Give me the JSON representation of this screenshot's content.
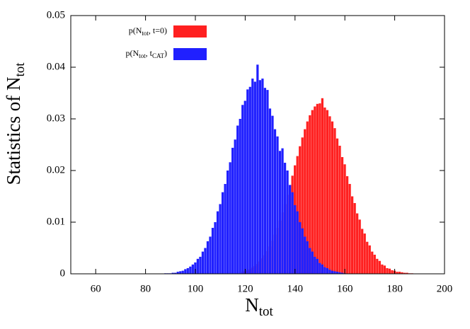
{
  "chart_data": {
    "type": "histogram",
    "x_label": {
      "text": "N",
      "subscript": "tot"
    },
    "y_label": {
      "text": "Statistics of N",
      "subscript": "tot"
    },
    "xlim": [
      50,
      200
    ],
    "ylim": [
      0,
      0.05
    ],
    "xticks": [
      60,
      80,
      100,
      120,
      140,
      160,
      180,
      200
    ],
    "yticks": [
      0,
      0.01,
      0.02,
      0.03,
      0.04,
      0.05
    ],
    "legend": "top-left",
    "x": [
      88,
      89,
      90,
      91,
      92,
      93,
      94,
      95,
      96,
      97,
      98,
      99,
      100,
      101,
      102,
      103,
      104,
      105,
      106,
      107,
      108,
      109,
      110,
      111,
      112,
      113,
      114,
      115,
      116,
      117,
      118,
      119,
      120,
      121,
      122,
      123,
      124,
      125,
      126,
      127,
      128,
      129,
      130,
      131,
      132,
      133,
      134,
      135,
      136,
      137,
      138,
      139,
      140,
      141,
      142,
      143,
      144,
      145,
      146,
      147,
      148,
      149,
      150,
      151,
      152,
      153,
      154,
      155,
      156,
      157,
      158,
      159,
      160,
      161,
      162,
      163,
      164,
      165,
      166,
      167,
      168,
      169,
      170,
      171,
      172,
      173,
      174,
      175,
      176,
      177,
      178,
      179,
      180,
      181,
      182,
      183,
      184,
      185,
      186,
      187,
      188,
      189,
      190,
      191,
      192,
      193,
      194,
      195,
      196,
      197,
      198
    ],
    "series": [
      {
        "name": [
          {
            "text": "p(N"
          },
          {
            "sub": "tot"
          },
          {
            "text": ", t=0)"
          }
        ],
        "color": "#ff2020",
        "values": [
          0,
          0,
          0,
          0,
          0,
          0,
          0,
          0,
          0,
          0,
          0,
          0,
          0,
          0,
          0,
          0,
          0,
          0,
          0,
          0,
          0,
          0,
          0,
          0,
          0,
          0,
          0,
          0,
          0,
          0,
          0,
          0.0004,
          0.0006,
          0.0007,
          0.0009,
          0.0012,
          0.0015,
          0.0019,
          0.0024,
          0.003,
          0.0036,
          0.0044,
          0.0053,
          0.0064,
          0.0076,
          0.0089,
          0.0103,
          0.0119,
          0.0135,
          0.0153,
          0.0172,
          0.019,
          0.021,
          0.0228,
          0.0247,
          0.0264,
          0.028,
          0.0295,
          0.0307,
          0.0317,
          0.0324,
          0.0329,
          0.033,
          0.034,
          0.0322,
          0.0317,
          0.0305,
          0.0295,
          0.0282,
          0.0262,
          0.0248,
          0.0226,
          0.0212,
          0.0189,
          0.0174,
          0.015,
          0.0137,
          0.0117,
          0.0105,
          0.0087,
          0.0078,
          0.0062,
          0.0055,
          0.0043,
          0.0037,
          0.0029,
          0.0025,
          0.0018,
          0.0016,
          0.0011,
          0.001,
          0.0007,
          0.0006,
          0.0004,
          0.0004,
          0.0003,
          0.0002,
          0.0002,
          0.0001,
          0.0001,
          0,
          0,
          0,
          0,
          0,
          0,
          0,
          0,
          0,
          0,
          0
        ]
      },
      {
        "name": [
          {
            "text": "p(N"
          },
          {
            "sub": "tot"
          },
          {
            "text": ", t"
          },
          {
            "sub": "CAT"
          },
          {
            "text": ")"
          }
        ],
        "color": "#2020ff",
        "values": [
          0.0001,
          0.0001,
          0.0001,
          0.0002,
          0.0002,
          0.0004,
          0.0005,
          0.0006,
          0.0009,
          0.0011,
          0.0014,
          0.0018,
          0.0022,
          0.0029,
          0.0033,
          0.0043,
          0.005,
          0.0063,
          0.0072,
          0.0089,
          0.01,
          0.0121,
          0.0135,
          0.0158,
          0.0174,
          0.02,
          0.0216,
          0.0244,
          0.026,
          0.0287,
          0.03,
          0.0327,
          0.0335,
          0.0357,
          0.0362,
          0.0378,
          0.0372,
          0.0405,
          0.0375,
          0.0378,
          0.036,
          0.0356,
          0.032,
          0.0306,
          0.028,
          0.0266,
          0.0238,
          0.0243,
          0.0215,
          0.02,
          0.0172,
          0.0158,
          0.0133,
          0.0121,
          0.01,
          0.0088,
          0.0072,
          0.0063,
          0.005,
          0.0043,
          0.0033,
          0.0029,
          0.0021,
          0.0018,
          0.0013,
          0.0011,
          0.0008,
          0.0006,
          0.0005,
          0.0004,
          0.0003,
          0.0002,
          0.0001,
          0,
          0,
          0,
          0,
          0,
          0,
          0,
          0,
          0,
          0,
          0,
          0,
          0,
          0,
          0,
          0,
          0,
          0,
          0,
          0,
          0,
          0,
          0,
          0,
          0,
          0,
          0,
          0,
          0,
          0,
          0,
          0,
          0,
          0,
          0,
          0,
          0,
          0
        ]
      }
    ]
  }
}
